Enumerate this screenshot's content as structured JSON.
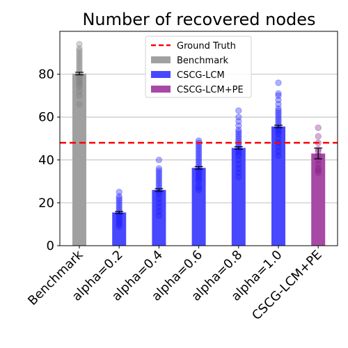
{
  "chart_data": {
    "type": "bar",
    "title": "Number of recovered nodes",
    "xlabel": "",
    "ylabel": "",
    "ylim": [
      0,
      100
    ],
    "yticks": [
      0,
      20,
      40,
      60,
      80
    ],
    "grid": "y",
    "legend_position": "top-center",
    "categories": [
      "Benchmark",
      "alpha=0.2",
      "alpha=0.4",
      "alpha=0.6",
      "alpha=0.8",
      "alpha=1.0",
      "CSCG-LCM+PE"
    ],
    "bars": [
      {
        "category": "Benchmark",
        "value": 80.3,
        "err": 0.6,
        "series": "Benchmark",
        "points": [
          66,
          70,
          72,
          74,
          75,
          76,
          77,
          78,
          79,
          80,
          81,
          82,
          83,
          84,
          85,
          86,
          87,
          88,
          89,
          90,
          91,
          92,
          94
        ]
      },
      {
        "category": "alpha=0.2",
        "value": 15.5,
        "err": 0.5,
        "series": "CSCG-LCM",
        "points": [
          9,
          10,
          11,
          12,
          13,
          14,
          15,
          16,
          17,
          18,
          19,
          20,
          21,
          22,
          23,
          25
        ]
      },
      {
        "category": "alpha=0.4",
        "value": 26,
        "err": 0.6,
        "series": "CSCG-LCM",
        "points": [
          14,
          16,
          18,
          20,
          22,
          24,
          25,
          26,
          27,
          28,
          29,
          30,
          31,
          32,
          33,
          34,
          35,
          36,
          40
        ]
      },
      {
        "category": "alpha=0.6",
        "value": 36.3,
        "err": 0.6,
        "series": "CSCG-LCM",
        "points": [
          26,
          27,
          28,
          30,
          31,
          32,
          33,
          34,
          35,
          36,
          37,
          38,
          39,
          40,
          41,
          42,
          43,
          44,
          45,
          46,
          47,
          48,
          49
        ]
      },
      {
        "category": "alpha=0.8",
        "value": 45.6,
        "err": 0.6,
        "series": "CSCG-LCM",
        "points": [
          32,
          34,
          36,
          38,
          40,
          42,
          43,
          44,
          45,
          46,
          47,
          48,
          49,
          50,
          51,
          52,
          53,
          54,
          56,
          58,
          60,
          63
        ]
      },
      {
        "category": "alpha=1.0",
        "value": 55.6,
        "err": 0.6,
        "series": "CSCG-LCM",
        "points": [
          42,
          44,
          46,
          48,
          50,
          52,
          53,
          54,
          55,
          56,
          57,
          58,
          59,
          60,
          61,
          62,
          63,
          64,
          66,
          68,
          70,
          71,
          76
        ]
      },
      {
        "category": "CSCG-LCM+PE",
        "value": 43,
        "err": 2.5,
        "series": "CSCG-LCM+PE",
        "points": [
          34,
          35,
          36,
          38,
          40,
          42,
          44,
          45,
          48,
          51,
          55
        ]
      }
    ],
    "hline": {
      "name": "Ground Truth",
      "value": 48,
      "color": "#ff0000",
      "style": "dashed"
    },
    "series": [
      {
        "name": "Benchmark",
        "color": "#a0a0a0",
        "point_color": "#808080"
      },
      {
        "name": "CSCG-LCM",
        "color": "#4848ff",
        "point_color": "#2020ff"
      },
      {
        "name": "CSCG-LCM+PE",
        "color": "#a64aa6",
        "point_color": "#8a208a"
      }
    ],
    "legend": [
      "Ground Truth",
      "Benchmark",
      "CSCG-LCM",
      "CSCG-LCM+PE"
    ]
  }
}
